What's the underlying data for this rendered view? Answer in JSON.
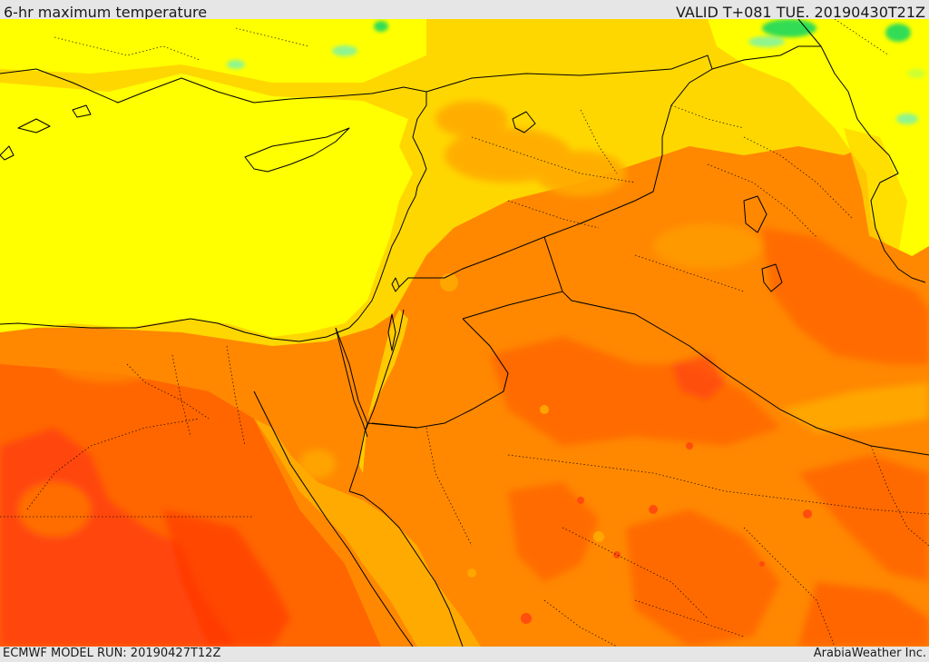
{
  "header": {
    "title": "6-hr maximum temperature",
    "valid_time": "VALID T+081 TUE. 20190430T21Z"
  },
  "footer": {
    "model_run": "ECMWF MODEL RUN: 20190427T12Z",
    "credit": "ArabiaWeather Inc."
  },
  "map": {
    "variable": "6-hr maximum temperature",
    "region": "Eastern Mediterranean / Middle East",
    "palette": {
      "light_green": "#8ff58f",
      "green": "#33dd55",
      "yellow_green": "#ccff33",
      "yellow": "#ffff00",
      "light_orange": "#ffd700",
      "amber": "#ffaa00",
      "orange": "#ff8800",
      "dark_orange": "#ff6600",
      "red_orange": "#ff4411",
      "border_color": "#000000"
    }
  }
}
